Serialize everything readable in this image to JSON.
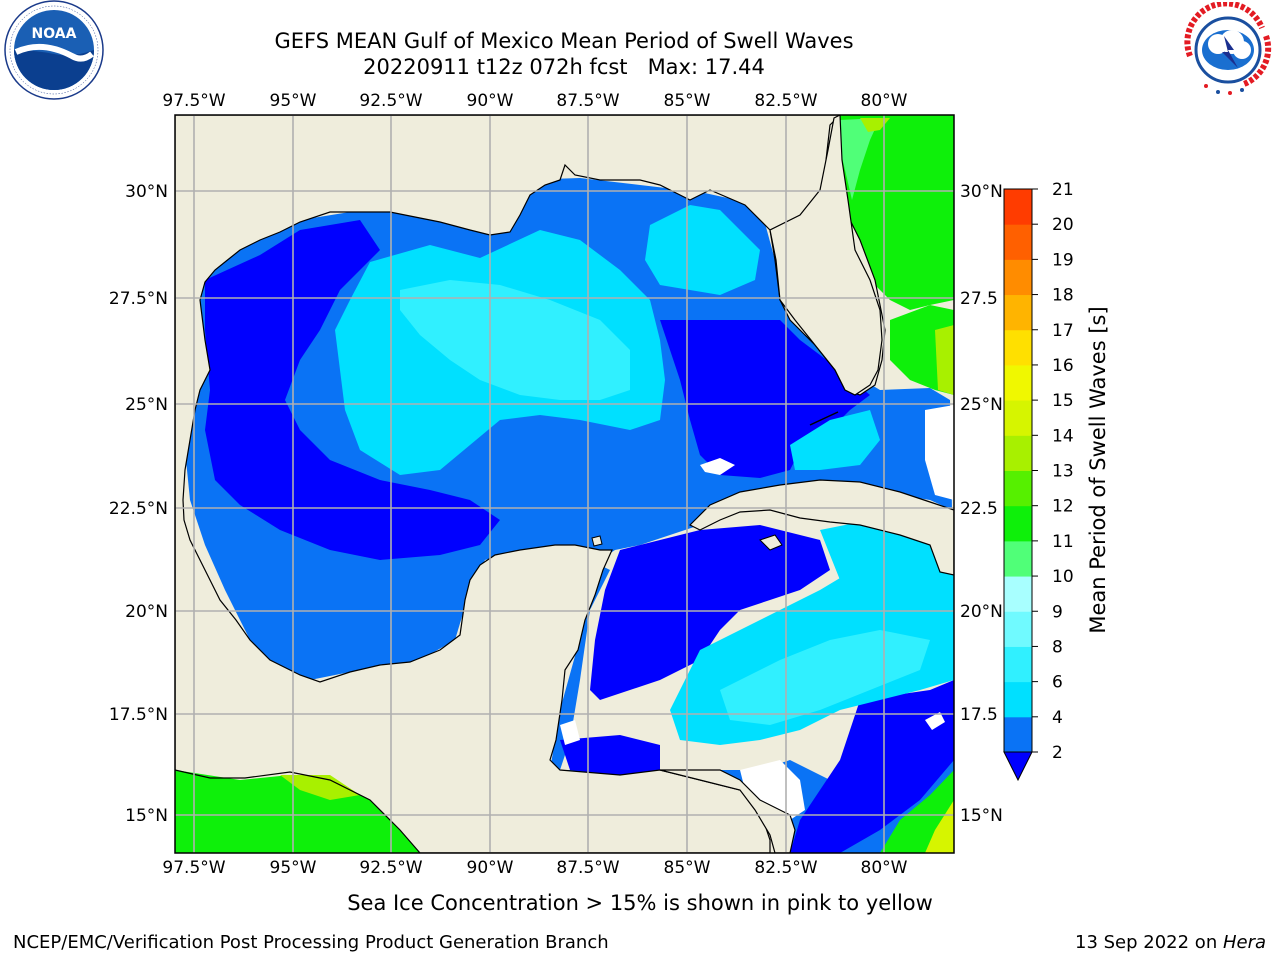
{
  "title": {
    "line1": "GEFS MEAN Gulf of Mexico Mean Period of Swell Waves",
    "line2": "20220911 t12z 072h fcst   Max: 17.44"
  },
  "axes": {
    "lon_labels": [
      "97.5°W",
      "95°W",
      "92.5°W",
      "90°W",
      "87.5°W",
      "85°W",
      "82.5°W",
      "80°W"
    ],
    "lat_labels_left": [
      "30°N",
      "27.5°N",
      "25°N",
      "22.5°N",
      "20°N",
      "17.5°N",
      "15°N"
    ],
    "lat_labels_right": [
      "30°N",
      "27.5",
      "25°N",
      "22.5",
      "20°N",
      "17.5",
      "15°N"
    ]
  },
  "colorbar": {
    "label": "Mean Period of Swell Waves [s]",
    "ticks": [
      "2",
      "4",
      "6",
      "8",
      "9",
      "10",
      "11",
      "12",
      "13",
      "14",
      "15",
      "16",
      "17",
      "18",
      "19",
      "20",
      "21"
    ],
    "colors": [
      "#0a73f5",
      "#00e0ff",
      "#30f0ff",
      "#70faff",
      "#a8ffff",
      "#50ff78",
      "#0ef00a",
      "#56f000",
      "#a8f000",
      "#d6f500",
      "#f0f800",
      "#ffe000",
      "#ffb400",
      "#ff8c00",
      "#ff6000",
      "#ff3c00",
      "#ff0000"
    ],
    "extend_color": "#0000ff"
  },
  "footer": {
    "ice_note": "Sea Ice Concentration > 15% is shown in pink to yellow",
    "credit": "NCEP/EMC/Verification Post Processing Product Generation Branch",
    "date_prefix": "13 Sep 2022 on ",
    "date_machine": "Hera"
  },
  "logos": {
    "noaa_text": "NOAA",
    "nws_text": "NATIONAL WEATHER SERVICE"
  },
  "map": {
    "region": "Gulf of Mexico",
    "max_value": 17.44,
    "land_color": "#efeddc",
    "grid_color": "#b0b0b0"
  }
}
